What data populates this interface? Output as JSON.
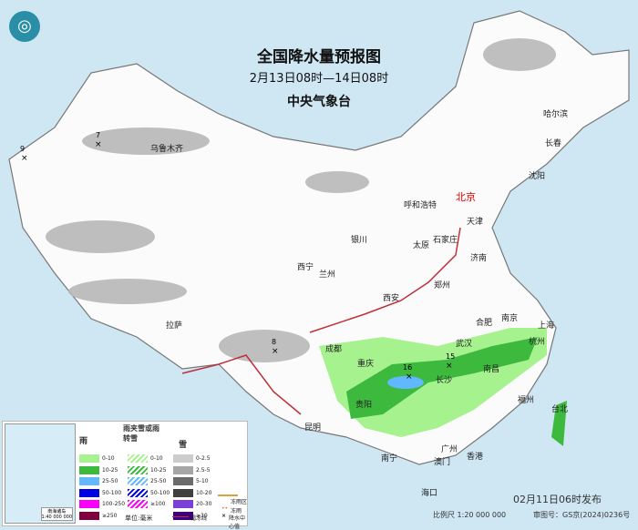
{
  "title": "全国降水量预报图",
  "period": "2月13日08时—14日08时",
  "agency": "中央气象台",
  "logo": "cma-logo",
  "cities": [
    {
      "name": "乌鲁木齐"
    },
    {
      "name": "哈尔滨"
    },
    {
      "name": "长春"
    },
    {
      "name": "沈阳"
    },
    {
      "name": "呼和浩特"
    },
    {
      "name": "北京"
    },
    {
      "name": "天津"
    },
    {
      "name": "银川"
    },
    {
      "name": "太原"
    },
    {
      "name": "石家庄"
    },
    {
      "name": "济南"
    },
    {
      "name": "西宁"
    },
    {
      "name": "兰州"
    },
    {
      "name": "郑州"
    },
    {
      "name": "西安"
    },
    {
      "name": "合肥"
    },
    {
      "name": "南京"
    },
    {
      "name": "上海"
    },
    {
      "name": "拉萨"
    },
    {
      "name": "成都"
    },
    {
      "name": "武汉"
    },
    {
      "name": "杭州"
    },
    {
      "name": "重庆"
    },
    {
      "name": "长沙"
    },
    {
      "name": "南昌"
    },
    {
      "name": "贵阳"
    },
    {
      "name": "福州"
    },
    {
      "name": "台北"
    },
    {
      "name": "昆明"
    },
    {
      "name": "南宁"
    },
    {
      "name": "广州"
    },
    {
      "name": "澳门"
    },
    {
      "name": "香港"
    },
    {
      "name": "海口"
    }
  ],
  "centers": [
    {
      "value": "9"
    },
    {
      "value": "7"
    },
    {
      "value": "8"
    },
    {
      "value": "16"
    },
    {
      "value": "15"
    }
  ],
  "legend": {
    "rain": {
      "title": "雨",
      "items": [
        {
          "label": "0-10",
          "color": "#a6f28f"
        },
        {
          "label": "10-25",
          "color": "#3dba3d"
        },
        {
          "label": "25-50",
          "color": "#61b8ff"
        },
        {
          "label": "50-100",
          "color": "#0000e1"
        },
        {
          "label": "100-250",
          "color": "#fa00fa"
        },
        {
          "label": "≥250",
          "color": "#800040"
        }
      ]
    },
    "mix": {
      "title": "雨夹雪或雨转雪",
      "items": [
        {
          "label": "0-10",
          "color": "#a6f28f"
        },
        {
          "label": "10-25",
          "color": "#3dba3d"
        },
        {
          "label": "25-50",
          "color": "#61b8ff"
        },
        {
          "label": "50-100",
          "color": "#0000e1"
        },
        {
          "label": "≥100",
          "color": "#fa00fa"
        }
      ]
    },
    "snow": {
      "title": "雪",
      "items": [
        {
          "label": "0-2.5",
          "color": "#cccccc"
        },
        {
          "label": "2.5-5",
          "color": "#a6a6a6"
        },
        {
          "label": "5-10",
          "color": "#6b6b6b"
        },
        {
          "label": "10-20",
          "color": "#404040"
        },
        {
          "label": "20-30",
          "color": "#7a3fd6"
        },
        {
          "label": "≥30",
          "color": "#3d0080"
        }
      ]
    },
    "unit": "单位:毫米",
    "freezing_zone": "冻雨区",
    "freezing_rain": "冻雨",
    "line": "霜冻线",
    "center": "降水中心值",
    "inset_label": "南海诸岛",
    "inset_scale": "1:40 000 000"
  },
  "issued": "02月11日06时发布",
  "scale": "比例尺 1:20 000 000",
  "map_number": "审图号：GS京(2024)0236号"
}
